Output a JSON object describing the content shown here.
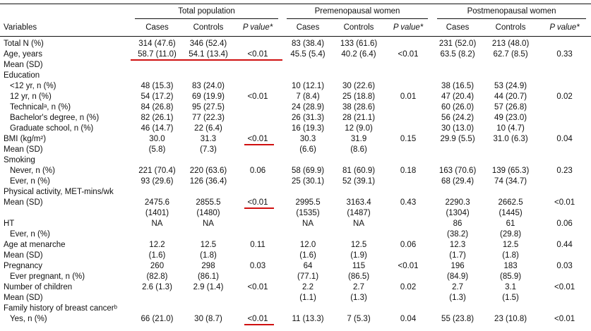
{
  "table": {
    "groups": [
      "Total population",
      "Premenopausal women",
      "Postmenopausal women"
    ],
    "header": [
      "Variables",
      "Cases",
      "Controls",
      "P value*",
      "Cases",
      "Controls",
      "P value*",
      "Cases",
      "Controls",
      "P value*"
    ],
    "rows": [
      [
        "Total N (%)",
        "314 (47.6)",
        "346 (52.4)",
        "",
        "83 (38.4)",
        "133 (61.6)",
        "",
        "231 (52.0)",
        "213 (48.0)",
        ""
      ],
      [
        "Age, years",
        "58.7 (11.0)",
        "54.1 (13.4)",
        "<0.01",
        "45.5 (5.4)",
        "40.2 (6.4)",
        "<0.01",
        "63.5 (8.2)",
        "62.7 (8.5)",
        "0.33"
      ],
      [
        "Mean (SD)",
        "",
        "",
        "",
        "",
        "",
        "",
        "",
        "",
        ""
      ],
      [
        "Education",
        "",
        "",
        "",
        "",
        "",
        "",
        "",
        "",
        ""
      ],
      [
        "<12 yr, n (%)",
        "48 (15.3)",
        "83 (24.0)",
        "",
        "10 (12.1)",
        "30 (22.6)",
        "",
        "38 (16.5)",
        "53 (24.9)",
        ""
      ],
      [
        "12 yr, n (%)",
        "54 (17.2)",
        "69 (19.9)",
        "<0.01",
        "7 (8.4)",
        "25 (18.8)",
        "0.01",
        "47 (20.4)",
        "44 (20.7)",
        "0.02"
      ],
      [
        "Technicalᵃ, n (%)",
        "84 (26.8)",
        "95 (27.5)",
        "",
        "24 (28.9)",
        "38 (28.6)",
        "",
        "60 (26.0)",
        "57 (26.8)",
        ""
      ],
      [
        "Bachelor's degree, n (%)",
        "82 (26.1)",
        "77 (22.3)",
        "",
        "26 (31.3)",
        "28 (21.1)",
        "",
        "56 (24.2)",
        "49 (23.0)",
        ""
      ],
      [
        "Graduate school, n (%)",
        "46 (14.7)",
        "22 (6.4)",
        "",
        "16 (19.3)",
        "12 (9.0)",
        "",
        "30 (13.0)",
        "10 (4.7)",
        ""
      ],
      [
        "BMI (kg/m²)",
        "30.0",
        "31.3",
        "<0.01",
        "30.3",
        "31.9",
        "0.15",
        "29.9 (5.5)",
        "31.0 (6.3)",
        "0.04"
      ],
      [
        "Mean (SD)",
        "(5.8)",
        "(7.3)",
        "",
        "(6.6)",
        "(8.6)",
        "",
        "",
        "",
        ""
      ],
      [
        "Smoking",
        "",
        "",
        "",
        "",
        "",
        "",
        "",
        "",
        ""
      ],
      [
        "Never, n (%)",
        "221 (70.4)",
        "220 (63.6)",
        "0.06",
        "58 (69.9)",
        "81 (60.9)",
        "0.18",
        "163 (70.6)",
        "139 (65.3)",
        "0.23"
      ],
      [
        "Ever, n (%)",
        "93 (29.6)",
        "126 (36.4)",
        "",
        "25 (30.1)",
        "52 (39.1)",
        "",
        "68 (29.4)",
        "74 (34.7)",
        ""
      ],
      [
        "Physical activity, MET-mins/wk",
        "",
        "",
        "",
        "",
        "",
        "",
        "",
        "",
        ""
      ],
      [
        "Mean (SD)",
        "2475.6",
        "2855.5",
        "<0.01",
        "2995.5",
        "3163.4",
        "0.43",
        "2290.3",
        "2662.5",
        "<0.01"
      ],
      [
        "",
        "(1401)",
        "(1480)",
        "",
        "(1535)",
        "(1487)",
        "",
        "(1304)",
        "(1445)",
        ""
      ],
      [
        "HT",
        "NA",
        "NA",
        "",
        "NA",
        "NA",
        "",
        "86",
        "61",
        "0.06"
      ],
      [
        "Ever, n (%)",
        "",
        "",
        "",
        "",
        "",
        "",
        "(38.2)",
        "(29.8)",
        ""
      ],
      [
        "Age at menarche",
        "12.2",
        "12.5",
        "0.11",
        "12.0",
        "12.5",
        "0.06",
        "12.3",
        "12.5",
        "0.44"
      ],
      [
        "Mean (SD)",
        "(1.6)",
        "(1.8)",
        "",
        "(1.6)",
        "(1.9)",
        "",
        "(1.7)",
        "(1.8)",
        ""
      ],
      [
        "Pregnancy",
        "260",
        "298",
        "0.03",
        "64",
        "115",
        "<0.01",
        "196",
        "183",
        "0.03"
      ],
      [
        "Ever pregnant, n (%)",
        "(82.8)",
        "(86.1)",
        "",
        "(77.1)",
        "(86.5)",
        "",
        "(84.9)",
        "(85.9)",
        ""
      ],
      [
        "Number of children",
        "2.6 (1.3)",
        "2.9 (1.4)",
        "<0.01",
        "2.2",
        "2.7",
        "0.02",
        "2.7",
        "3.1",
        "<0.01"
      ],
      [
        "Mean (SD)",
        "",
        "",
        "",
        "(1.1)",
        "(1.3)",
        "",
        "(1.3)",
        "(1.5)",
        ""
      ],
      [
        "Family history of breast cancerᵇ",
        "",
        "",
        "",
        "",
        "",
        "",
        "",
        "",
        ""
      ],
      [
        "Yes, n (%)",
        "66 (21.0)",
        "30 (8.7)",
        "<0.01",
        "11 (13.3)",
        "7 (5.3)",
        "0.04",
        "55 (23.8)",
        "23 (10.8)",
        "<0.01"
      ]
    ]
  }
}
